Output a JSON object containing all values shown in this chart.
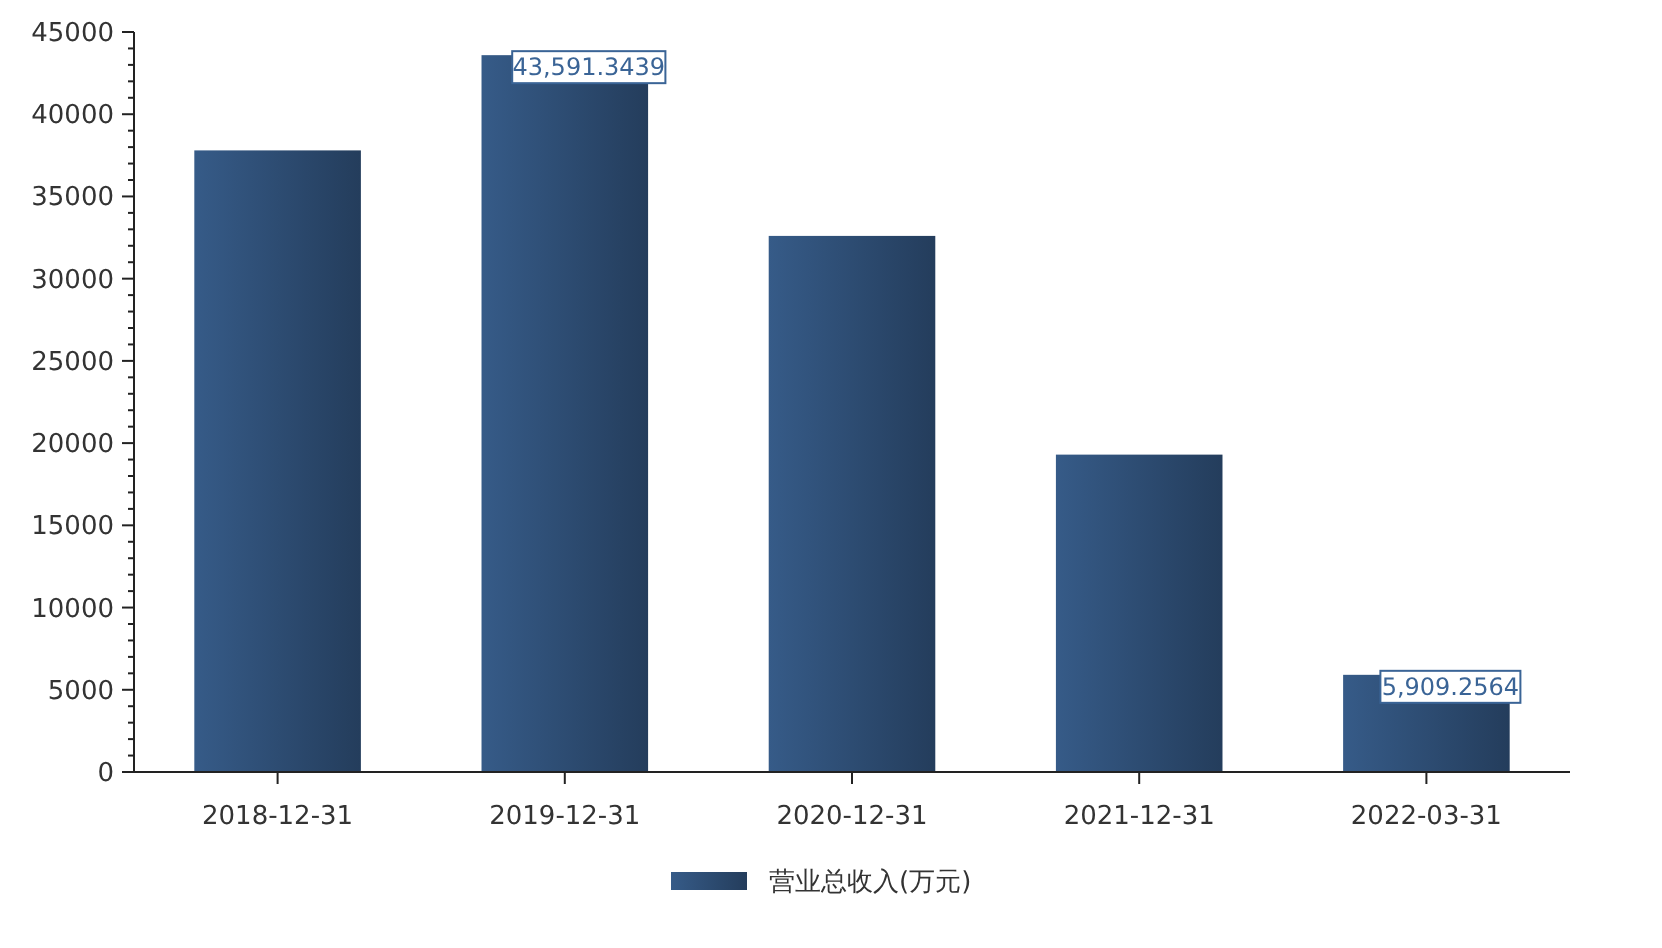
{
  "chart_data": {
    "type": "bar",
    "categories": [
      "2018-12-31",
      "2019-12-31",
      "2020-12-31",
      "2021-12-31",
      "2022-03-31"
    ],
    "series": [
      {
        "name": "营业总收入(万元)",
        "color": "#2d4c72",
        "values": [
          37800,
          43591.3439,
          32600,
          19300,
          5909.2564
        ],
        "value_labels": [
          null,
          "43,591.3439",
          null,
          null,
          "5,909.2564"
        ]
      }
    ],
    "ylim": [
      0,
      45000
    ],
    "yticks": [
      0,
      {
        "value": 1000,
        "label": null
      },
      {
        "value": 2000,
        "label": null
      },
      {
        "value": 3000,
        "label": null
      },
      {
        "value": 4000,
        "label": null
      },
      5000,
      {
        "value": 6000,
        "label": null
      },
      {
        "value": 7000,
        "label": null
      },
      {
        "value": 8000,
        "label": null
      },
      {
        "value": 9000,
        "label": null
      },
      10000,
      {
        "value": 11000,
        "label": null
      },
      {
        "value": 12000,
        "label": null
      },
      {
        "value": 13000,
        "label": null
      },
      {
        "value": 14000,
        "label": null
      },
      15000,
      {
        "value": 16000,
        "label": null
      },
      {
        "value": 17000,
        "label": null
      },
      {
        "value": 18000,
        "label": null
      },
      {
        "value": 19000,
        "label": null
      },
      20000,
      {
        "value": 21000,
        "label": null
      },
      {
        "value": 22000,
        "label": null
      },
      {
        "value": 23000,
        "label": null
      },
      {
        "value": 24000,
        "label": null
      },
      25000,
      {
        "value": 26000,
        "label": null
      },
      {
        "value": 27000,
        "label": null
      },
      {
        "value": 28000,
        "label": null
      },
      {
        "value": 29000,
        "label": null
      },
      30000,
      {
        "value": 31000,
        "label": null
      },
      {
        "value": 32000,
        "label": null
      },
      {
        "value": 33000,
        "label": null
      },
      {
        "value": 34000,
        "label": null
      },
      35000,
      {
        "value": 36000,
        "label": null
      },
      {
        "value": 37000,
        "label": null
      },
      {
        "value": 38000,
        "label": null
      },
      {
        "value": 39000,
        "label": null
      },
      40000,
      {
        "value": 41000,
        "label": null
      },
      {
        "value": 42000,
        "label": null
      },
      {
        "value": 43000,
        "label": null
      },
      {
        "value": 44000,
        "label": null
      },
      45000
    ],
    "grid": false,
    "legend": "bottom"
  }
}
